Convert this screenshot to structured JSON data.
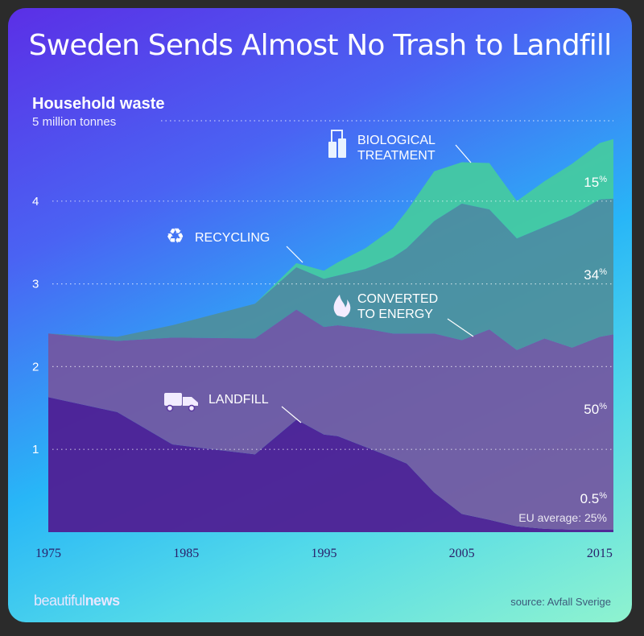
{
  "title": "Sweden Sends Almost No Trash to Landfill",
  "subtitle": "Household waste",
  "brand": {
    "light": "beautiful",
    "bold": "news"
  },
  "source": "source: Avfall Sverige",
  "eu_note": "EU average: 25%",
  "colors": {
    "landfill": "#4f1f94",
    "energy": "#74569f",
    "recycling": "#4f8e9a",
    "biological": "#46cc9d",
    "gridline": "#ffffff"
  },
  "icons": {
    "biological": "factory-icon",
    "recycling": "recycle-icon",
    "energy": "flame-icon",
    "landfill": "garbage-truck-icon"
  },
  "chart_data": {
    "type": "area",
    "stacked": true,
    "title": "Household waste",
    "ylabel": "",
    "y_top_tick_label": "5 million tonnes",
    "yticks": [
      1,
      2,
      3,
      4
    ],
    "ylim": [
      0,
      5
    ],
    "xlim": [
      1975,
      2016
    ],
    "xticks": [
      1975,
      1985,
      1995,
      2005,
      2015
    ],
    "grid": true,
    "x": [
      1975,
      1980,
      1984,
      1990,
      1993,
      1995,
      1996,
      1998,
      2000,
      2001,
      2003,
      2005,
      2007,
      2009,
      2011,
      2013,
      2015,
      2016
    ],
    "series": [
      {
        "name": "LANDFILL",
        "label": "LANDFILL",
        "values": [
          1.63,
          1.45,
          1.06,
          0.94,
          1.36,
          1.18,
          1.16,
          1.03,
          0.9,
          0.83,
          0.48,
          0.22,
          0.15,
          0.07,
          0.04,
          0.03,
          0.03,
          0.03
        ],
        "share_2015": "0.5%"
      },
      {
        "name": "CONVERTED TO ENERGY",
        "label": [
          "CONVERTED",
          "TO ENERGY"
        ],
        "values": [
          0.77,
          0.86,
          1.29,
          1.4,
          1.33,
          1.3,
          1.34,
          1.43,
          1.5,
          1.57,
          1.92,
          2.1,
          2.3,
          2.13,
          2.3,
          2.2,
          2.33,
          2.36
        ],
        "share_2015": "50%"
      },
      {
        "name": "RECYCLING",
        "label": "RECYCLING",
        "values": [
          0.0,
          0.05,
          0.15,
          0.42,
          0.51,
          0.58,
          0.6,
          0.72,
          0.92,
          1.03,
          1.36,
          1.65,
          1.45,
          1.35,
          1.35,
          1.6,
          1.66,
          1.64
        ],
        "share_2015": "34%"
      },
      {
        "name": "BIOLOGICAL TREATMENT",
        "label": [
          "BIOLOGICAL",
          "TREATMENT"
        ],
        "values": [
          0.0,
          0.0,
          0.0,
          0.0,
          0.05,
          0.1,
          0.16,
          0.25,
          0.35,
          0.45,
          0.6,
          0.5,
          0.56,
          0.45,
          0.55,
          0.62,
          0.68,
          0.72
        ],
        "share_2015": "15%"
      }
    ]
  }
}
